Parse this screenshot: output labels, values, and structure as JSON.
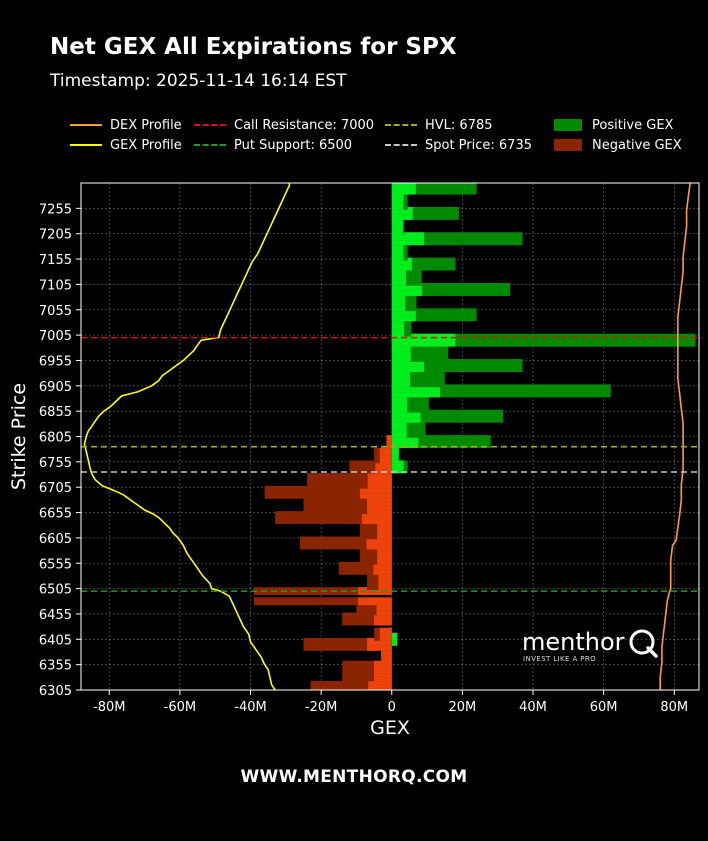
{
  "title": "Net GEX All Expirations for SPX",
  "subtitle": "Timestamp: 2025-11-14 16:14 EST",
  "footer": "WWW.MENTHORQ.COM",
  "watermark": {
    "text": "menthor",
    "tagline": "INVEST LIKE A PRO"
  },
  "legend": [
    {
      "label": "DEX Profile",
      "style": "line",
      "color": "#ff9a3c"
    },
    {
      "label": "GEX Profile",
      "style": "line",
      "color": "#ffff00"
    },
    {
      "label": "Call Resistance: 7000",
      "style": "dashed",
      "color": "#e01010"
    },
    {
      "label": "Put Support: 6500",
      "style": "dashed",
      "color": "#1e9e1e"
    },
    {
      "label": "HVL: 6785",
      "style": "dashed",
      "color": "#a8a82a"
    },
    {
      "label": "Spot Price: 6735",
      "style": "dashed",
      "color": "#c8c8c8"
    },
    {
      "label": "Positive GEX",
      "style": "box",
      "color": "#008a00"
    },
    {
      "label": "Negative GEX",
      "style": "box",
      "color": "#8b2500"
    }
  ],
  "colors": {
    "background": "#000000",
    "positive_total": "#008a00",
    "negative_total": "#8b2500",
    "positive_expiry": "#00ff22",
    "negative_expiry": "#ff4a0e",
    "gex_line": "#ffff00",
    "dex_line": "#ff9a3c"
  },
  "chart_data": {
    "type": "bar",
    "orientation": "horizontal",
    "xlabel": "GEX",
    "ylabel": "Strike Price",
    "xlim": [
      -88,
      87
    ],
    "x_unit": "M",
    "ylim": [
      6305,
      7305
    ],
    "xticks": [
      -80,
      -60,
      -40,
      -20,
      0,
      20,
      40,
      60,
      80
    ],
    "xtick_labels": [
      "-80M",
      "-60M",
      "-40M",
      "-20M",
      "0",
      "20M",
      "40M",
      "60M",
      "80M"
    ],
    "yticks": [
      6305,
      6355,
      6405,
      6455,
      6505,
      6555,
      6605,
      6655,
      6705,
      6755,
      6805,
      6855,
      6905,
      6955,
      7005,
      7055,
      7105,
      7155,
      7205,
      7255
    ],
    "grid": true,
    "strikes": [
      6305,
      6315,
      6330,
      6345,
      6355,
      6370,
      6380,
      6390,
      6400,
      6410,
      6420,
      6440,
      6450,
      6460,
      6470,
      6480,
      6500,
      6510,
      6525,
      6540,
      6550,
      6560,
      6575,
      6590,
      6600,
      6610,
      6625,
      6640,
      6650,
      6660,
      6675,
      6690,
      6700,
      6710,
      6725,
      6740,
      6750,
      6760,
      6775,
      6790,
      6800,
      6810,
      6825,
      6840,
      6850,
      6860,
      6875,
      6890,
      6900,
      6910,
      6925,
      6940,
      6950,
      6960,
      6975,
      6990,
      7000,
      7010,
      7025,
      7040,
      7050,
      7060,
      7075,
      7090,
      7100,
      7110,
      7125,
      7140,
      7150,
      7160,
      7175,
      7190,
      7200,
      7210,
      7225,
      7240,
      7250,
      7260,
      7275,
      7290,
      7300
    ],
    "series": [
      {
        "name": "Positive GEX",
        "values": [
          0,
          0,
          0,
          0,
          0,
          0,
          0,
          0,
          1.5,
          1.5,
          0,
          0,
          0,
          0,
          0,
          0,
          0,
          0,
          0,
          0,
          0,
          0,
          0,
          0,
          0,
          0,
          0,
          0,
          0,
          0,
          0,
          0,
          0,
          0,
          0,
          4.5,
          4.5,
          2,
          2,
          28,
          28,
          9.5,
          9.5,
          31.5,
          31.5,
          10.5,
          10.5,
          62,
          62,
          15,
          15,
          37,
          37,
          16,
          16,
          86,
          86,
          5.5,
          5.5,
          24,
          24,
          7,
          7,
          33.5,
          33.5,
          8.5,
          8.5,
          18,
          18,
          4.5,
          4.5,
          37,
          37,
          3.5,
          3.5,
          19,
          19,
          4.5,
          4.5,
          24,
          24
        ]
      },
      {
        "name": "Negative GEX",
        "values": [
          -23,
          -23,
          -14,
          -14,
          -14,
          -3,
          -3,
          -25,
          -25,
          -5,
          -5,
          -14,
          -14,
          -10,
          -10,
          -39,
          -39,
          -7,
          -7,
          -15,
          -15,
          -9,
          -9,
          -26,
          -26,
          -9,
          -9,
          -33,
          -33,
          -25,
          -25,
          -36,
          -36,
          -24,
          -24,
          -12,
          -12,
          -5,
          -5,
          -1.5,
          -1.5,
          0,
          0,
          0,
          0,
          0,
          0,
          0,
          0,
          0,
          0,
          0,
          0,
          0,
          0,
          0,
          0,
          0,
          0,
          0,
          0,
          0,
          0,
          0,
          0,
          0,
          0,
          0,
          0,
          0,
          0,
          0,
          0,
          0,
          0,
          0,
          0,
          0,
          0,
          0,
          0
        ]
      }
    ],
    "gex_profile": [
      [
        -33,
        6305
      ],
      [
        -34,
        6315
      ],
      [
        -34.5,
        6330
      ],
      [
        -35,
        6345
      ],
      [
        -36,
        6355
      ],
      [
        -37,
        6370
      ],
      [
        -38.5,
        6385
      ],
      [
        -40,
        6400
      ],
      [
        -40.5,
        6415
      ],
      [
        -42,
        6430
      ],
      [
        -43,
        6445
      ],
      [
        -44,
        6460
      ],
      [
        -45,
        6475
      ],
      [
        -46,
        6490
      ],
      [
        -48.5,
        6500
      ],
      [
        -51,
        6505
      ],
      [
        -51.5,
        6515
      ],
      [
        -53.5,
        6530
      ],
      [
        -55,
        6545
      ],
      [
        -56.5,
        6560
      ],
      [
        -58,
        6575
      ],
      [
        -59,
        6590
      ],
      [
        -60.5,
        6605
      ],
      [
        -62,
        6615
      ],
      [
        -63,
        6625
      ],
      [
        -64.5,
        6635
      ],
      [
        -66,
        6645
      ],
      [
        -67.5,
        6652
      ],
      [
        -70,
        6660
      ],
      [
        -72,
        6670
      ],
      [
        -74,
        6680
      ],
      [
        -76,
        6690
      ],
      [
        -78.5,
        6698
      ],
      [
        -82,
        6708
      ],
      [
        -84,
        6720
      ],
      [
        -85,
        6732
      ],
      [
        -85.5,
        6745
      ],
      [
        -86,
        6760
      ],
      [
        -86.5,
        6775
      ],
      [
        -87,
        6790
      ],
      [
        -86.5,
        6805
      ],
      [
        -86,
        6815
      ],
      [
        -85,
        6825
      ],
      [
        -84,
        6835
      ],
      [
        -83,
        6845
      ],
      [
        -81.5,
        6855
      ],
      [
        -79.5,
        6865
      ],
      [
        -78,
        6875
      ],
      [
        -76.5,
        6885
      ],
      [
        -72,
        6893
      ],
      [
        -68,
        6905
      ],
      [
        -66,
        6915
      ],
      [
        -65,
        6925
      ],
      [
        -63,
        6935
      ],
      [
        -61,
        6945
      ],
      [
        -59,
        6955
      ],
      [
        -57.5,
        6965
      ],
      [
        -56,
        6975
      ],
      [
        -55,
        6985
      ],
      [
        -54,
        6995
      ],
      [
        -49,
        7000
      ],
      [
        -48.5,
        7015
      ],
      [
        -47.5,
        7030
      ],
      [
        -46.5,
        7045
      ],
      [
        -45.5,
        7060
      ],
      [
        -44.5,
        7075
      ],
      [
        -43.5,
        7090
      ],
      [
        -42.5,
        7105
      ],
      [
        -41.5,
        7120
      ],
      [
        -40.5,
        7135
      ],
      [
        -39.5,
        7150
      ],
      [
        -38,
        7165
      ],
      [
        -37,
        7180
      ],
      [
        -36,
        7195
      ],
      [
        -35,
        7210
      ],
      [
        -34,
        7225
      ],
      [
        -33,
        7240
      ],
      [
        -32,
        7255
      ],
      [
        -31,
        7270
      ],
      [
        -30,
        7285
      ],
      [
        -29,
        7300
      ],
      [
        -29,
        7305
      ]
    ],
    "dex_profile": [
      [
        76,
        6305
      ],
      [
        76,
        6330
      ],
      [
        76.5,
        6360
      ],
      [
        76.5,
        6390
      ],
      [
        77,
        6420
      ],
      [
        77.5,
        6450
      ],
      [
        78,
        6480
      ],
      [
        78.5,
        6495
      ],
      [
        79,
        6505
      ],
      [
        79,
        6530
      ],
      [
        79,
        6560
      ],
      [
        79.5,
        6590
      ],
      [
        80.5,
        6600
      ],
      [
        81,
        6625
      ],
      [
        81.5,
        6650
      ],
      [
        82,
        6680
      ],
      [
        82,
        6710
      ],
      [
        82.5,
        6740
      ],
      [
        82.5,
        6770
      ],
      [
        82.5,
        6800
      ],
      [
        82.5,
        6830
      ],
      [
        82,
        6860
      ],
      [
        81.5,
        6890
      ],
      [
        81,
        6920
      ],
      [
        81,
        6950
      ],
      [
        81,
        6980
      ],
      [
        81,
        7010
      ],
      [
        81,
        7040
      ],
      [
        81.5,
        7070
      ],
      [
        82,
        7100
      ],
      [
        82.5,
        7130
      ],
      [
        82.5,
        7160
      ],
      [
        83,
        7190
      ],
      [
        83.5,
        7220
      ],
      [
        83.5,
        7250
      ],
      [
        84,
        7280
      ],
      [
        84.5,
        7305
      ]
    ],
    "levels": [
      {
        "name": "Call Resistance",
        "value": 7000,
        "color": "#e01010"
      },
      {
        "name": "HVL",
        "value": 6785,
        "color": "#a8a82a"
      },
      {
        "name": "Spot Price",
        "value": 6735,
        "color": "#c8c8c8"
      },
      {
        "name": "Put Support",
        "value": 6500,
        "color": "#1e9e1e"
      }
    ]
  }
}
